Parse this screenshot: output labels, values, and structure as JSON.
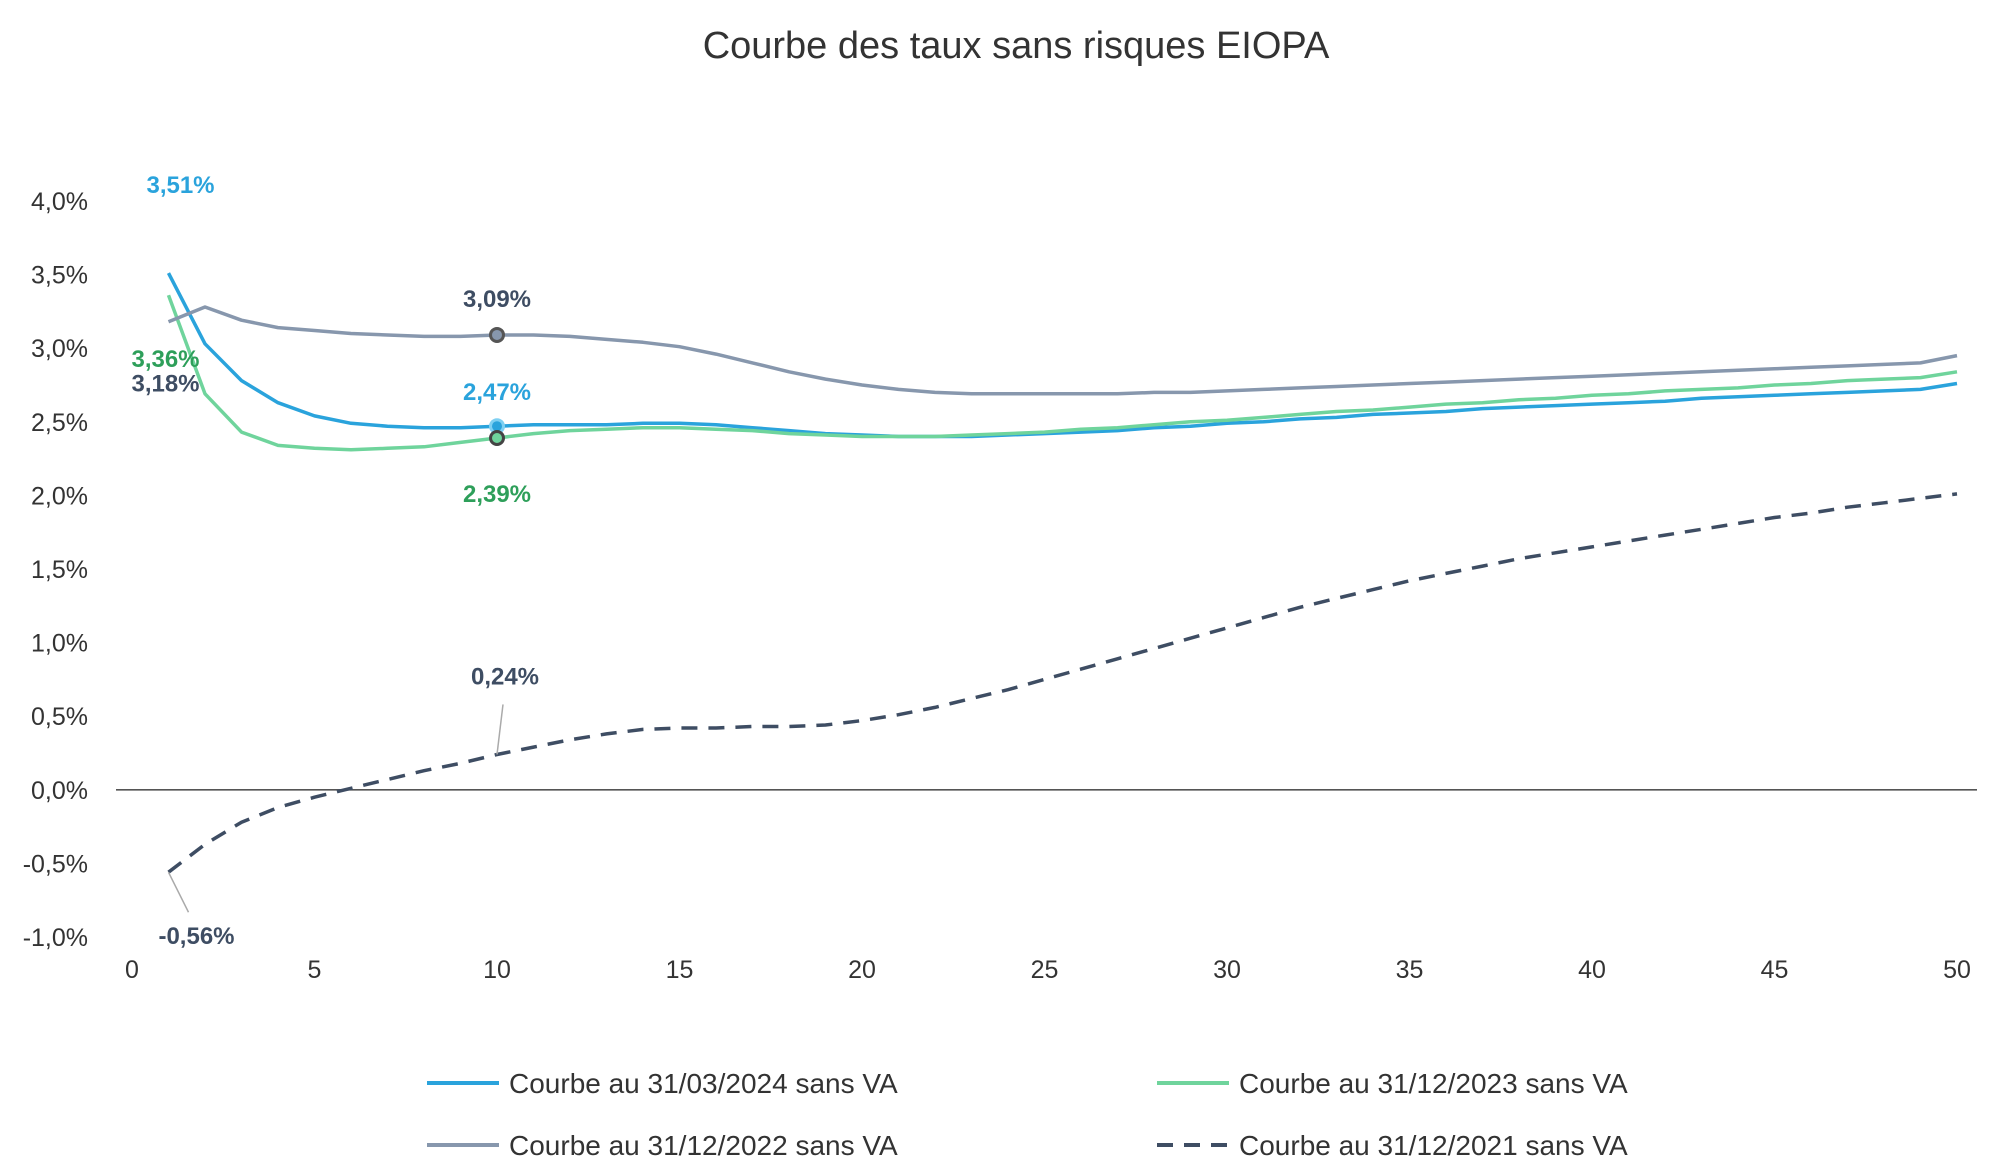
{
  "chart_data": {
    "type": "line",
    "title": "Courbe des taux sans risques EIOPA",
    "xlabel": "",
    "ylabel": "",
    "xlim": [
      0,
      50
    ],
    "ylim": [
      -1.0,
      4.0
    ],
    "x_ticks": [
      "0",
      "5",
      "10",
      "15",
      "20",
      "25",
      "30",
      "35",
      "40",
      "45",
      "50"
    ],
    "y_ticks": [
      "-1,0%",
      "-0,5%",
      "0,0%",
      "0,5%",
      "1,0%",
      "1,5%",
      "2,0%",
      "2,5%",
      "3,0%",
      "3,5%",
      "4,0%"
    ],
    "grid": false,
    "legend_position": "bottom",
    "x": [
      1,
      2,
      3,
      4,
      5,
      6,
      7,
      8,
      9,
      10,
      11,
      12,
      13,
      14,
      15,
      16,
      17,
      18,
      19,
      20,
      21,
      22,
      23,
      24,
      25,
      26,
      27,
      28,
      29,
      30,
      31,
      32,
      33,
      34,
      35,
      36,
      37,
      38,
      39,
      40,
      41,
      42,
      43,
      44,
      45,
      46,
      47,
      48,
      49,
      50
    ],
    "series": [
      {
        "name": "Courbe au 31/03/2024 sans VA",
        "color": "#2aa3dc",
        "dash": "solid",
        "values": [
          3.51,
          3.03,
          2.78,
          2.63,
          2.54,
          2.49,
          2.47,
          2.46,
          2.46,
          2.47,
          2.48,
          2.48,
          2.48,
          2.49,
          2.49,
          2.48,
          2.46,
          2.44,
          2.42,
          2.41,
          2.4,
          2.4,
          2.4,
          2.41,
          2.42,
          2.43,
          2.44,
          2.46,
          2.47,
          2.49,
          2.5,
          2.52,
          2.53,
          2.55,
          2.56,
          2.57,
          2.59,
          2.6,
          2.61,
          2.62,
          2.63,
          2.64,
          2.66,
          2.67,
          2.68,
          2.69,
          2.7,
          2.71,
          2.72,
          2.76
        ]
      },
      {
        "name": "Courbe au 31/12/2023 sans VA",
        "color": "#6fd49c",
        "dash": "solid",
        "values": [
          3.36,
          2.69,
          2.43,
          2.34,
          2.32,
          2.31,
          2.32,
          2.33,
          2.36,
          2.39,
          2.42,
          2.44,
          2.45,
          2.46,
          2.46,
          2.45,
          2.44,
          2.42,
          2.41,
          2.4,
          2.4,
          2.4,
          2.41,
          2.42,
          2.43,
          2.45,
          2.46,
          2.48,
          2.5,
          2.51,
          2.53,
          2.55,
          2.57,
          2.58,
          2.6,
          2.62,
          2.63,
          2.65,
          2.66,
          2.68,
          2.69,
          2.71,
          2.72,
          2.73,
          2.75,
          2.76,
          2.78,
          2.79,
          2.8,
          2.84
        ]
      },
      {
        "name": "Courbe au 31/12/2022 sans VA",
        "color": "#8797ad",
        "dash": "solid",
        "values": [
          3.18,
          3.28,
          3.19,
          3.14,
          3.12,
          3.1,
          3.09,
          3.08,
          3.08,
          3.09,
          3.09,
          3.08,
          3.06,
          3.04,
          3.01,
          2.96,
          2.9,
          2.84,
          2.79,
          2.75,
          2.72,
          2.7,
          2.69,
          2.69,
          2.69,
          2.69,
          2.69,
          2.7,
          2.7,
          2.71,
          2.72,
          2.73,
          2.74,
          2.75,
          2.76,
          2.77,
          2.78,
          2.79,
          2.8,
          2.81,
          2.82,
          2.83,
          2.84,
          2.85,
          2.86,
          2.87,
          2.88,
          2.89,
          2.9,
          2.95
        ]
      },
      {
        "name": "Courbe au 31/12/2021 sans VA",
        "color": "#3e4d63",
        "dash": "dashed",
        "values": [
          -0.56,
          -0.37,
          -0.22,
          -0.12,
          -0.05,
          0.01,
          0.07,
          0.13,
          0.18,
          0.24,
          0.29,
          0.34,
          0.38,
          0.41,
          0.42,
          0.42,
          0.43,
          0.43,
          0.44,
          0.47,
          0.51,
          0.56,
          0.62,
          0.68,
          0.75,
          0.82,
          0.89,
          0.96,
          1.03,
          1.1,
          1.17,
          1.24,
          1.3,
          1.36,
          1.42,
          1.47,
          1.52,
          1.57,
          1.61,
          1.65,
          1.69,
          1.73,
          1.77,
          1.81,
          1.85,
          1.88,
          1.92,
          1.95,
          1.98,
          2.01
        ]
      }
    ],
    "annotations": [
      {
        "text": "3,51%",
        "x": 1,
        "y": 3.51,
        "color": "#2aa3dc"
      },
      {
        "text": "3,18%",
        "x": 1,
        "y": 3.18,
        "color": "#3e4d63"
      },
      {
        "text": "3,36%",
        "x": 1,
        "y": 3.36,
        "color": "#2e9f5a"
      },
      {
        "text": "3,09%",
        "x": 10,
        "y": 3.09,
        "color": "#3e4d63"
      },
      {
        "text": "2,47%",
        "x": 10,
        "y": 2.47,
        "color": "#2aa3dc"
      },
      {
        "text": "2,39%",
        "x": 10,
        "y": 2.39,
        "color": "#2e9f5a"
      },
      {
        "text": "0,24%",
        "x": 10,
        "y": 0.24,
        "color": "#3e4d63"
      },
      {
        "text": "-0,56%",
        "x": 1,
        "y": -0.56,
        "color": "#3e4d63"
      }
    ]
  }
}
